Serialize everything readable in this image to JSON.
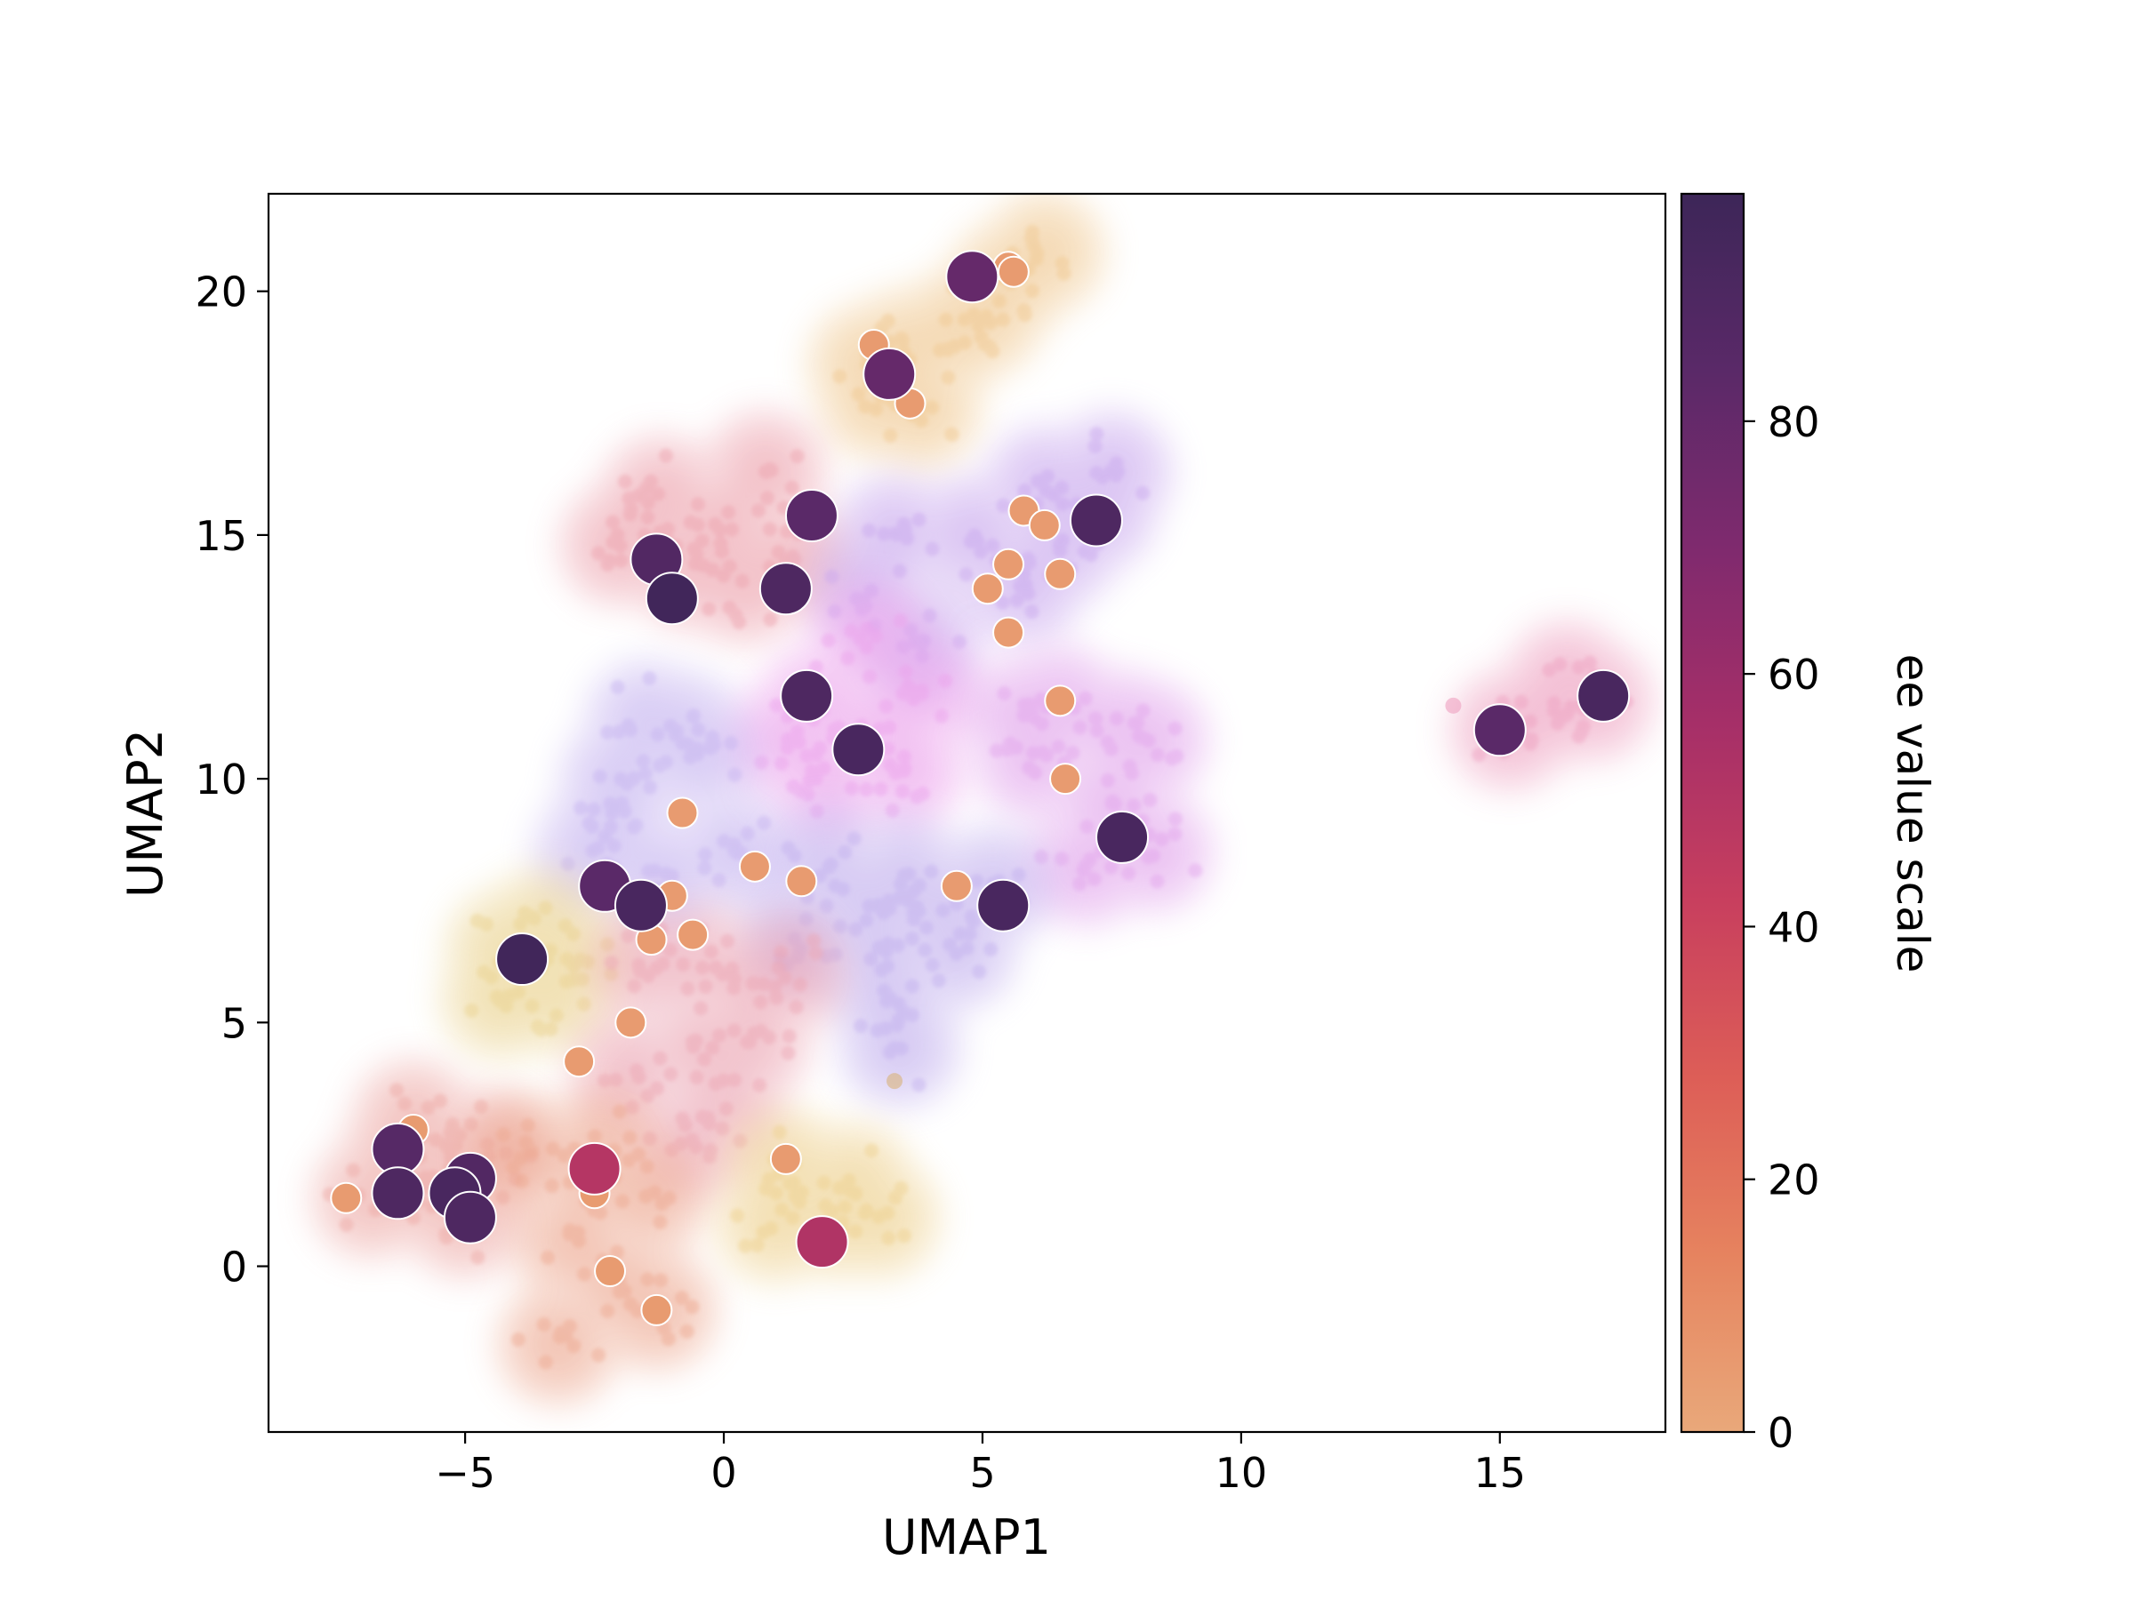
{
  "chart_data": {
    "type": "scatter",
    "title": "",
    "xlabel": "UMAP1",
    "ylabel": "UMAP2",
    "xlim": [
      -8.8,
      18.2
    ],
    "ylim": [
      -3.4,
      22.0
    ],
    "xticks": [
      -5,
      0,
      5,
      10,
      15
    ],
    "xtick_labels": [
      "−5",
      "0",
      "5",
      "10",
      "15"
    ],
    "yticks": [
      0,
      5,
      10,
      15,
      20
    ],
    "yticks_labels": [
      "0",
      "5",
      "10",
      "15",
      "20"
    ],
    "grid": false,
    "legend": "none",
    "colorbar": {
      "label": "ee value scale",
      "range": [
        0,
        98
      ],
      "ticks": [
        0,
        20,
        40,
        60,
        80
      ],
      "tick_labels": [
        "0",
        "20",
        "40",
        "60",
        "80"
      ],
      "colormap": "flare",
      "stops": [
        "#e9a87a",
        "#e6835f",
        "#dd5e57",
        "#c83f5e",
        "#a62f68",
        "#7f2a6e",
        "#5a2968",
        "#3d2658"
      ]
    },
    "density_clusters": [
      {
        "color": "#f0c890",
        "points": [
          [
            3.5,
            18.8
          ],
          [
            4.5,
            19.2
          ],
          [
            5.5,
            20.2
          ],
          [
            6.2,
            20.8
          ],
          [
            3.0,
            17.8
          ],
          [
            3.8,
            17.6
          ],
          [
            5.0,
            19.5
          ],
          [
            2.8,
            18.5
          ]
        ]
      },
      {
        "color": "#eda3ae",
        "points": [
          [
            -1.5,
            15.3
          ],
          [
            0.0,
            15.2
          ],
          [
            -2.0,
            14.8
          ],
          [
            0.8,
            16.3
          ],
          [
            -0.6,
            14.3
          ],
          [
            1.3,
            14.5
          ],
          [
            -1.2,
            15.8
          ],
          [
            0.4,
            14.0
          ]
        ]
      },
      {
        "color": "#c9a8ee",
        "points": [
          [
            6.2,
            16.0
          ],
          [
            7.5,
            16.3
          ],
          [
            6.5,
            14.8
          ],
          [
            5.8,
            14.0
          ],
          [
            4.8,
            15.0
          ],
          [
            3.3,
            15.0
          ],
          [
            2.8,
            14.0
          ],
          [
            3.8,
            12.8
          ],
          [
            7.2,
            15.5
          ]
        ]
      },
      {
        "color": "#eca2ec",
        "points": [
          [
            1.8,
            11.5
          ],
          [
            3.0,
            11.0
          ],
          [
            2.0,
            10.0
          ],
          [
            3.8,
            11.7
          ],
          [
            2.8,
            12.8
          ],
          [
            1.2,
            10.8
          ],
          [
            3.5,
            10.2
          ]
        ]
      },
      {
        "color": "#e2a4ec",
        "points": [
          [
            6.5,
            11.5
          ],
          [
            7.7,
            11.0
          ],
          [
            6.0,
            10.4
          ],
          [
            7.5,
            9.5
          ],
          [
            8.3,
            8.5
          ],
          [
            7.0,
            8.2
          ],
          [
            8.2,
            10.8
          ],
          [
            5.8,
            11.3
          ]
        ]
      },
      {
        "color": "#c6b4f0",
        "points": [
          [
            -1.5,
            11.2
          ],
          [
            -2.0,
            10.0
          ],
          [
            -0.5,
            10.5
          ],
          [
            -2.5,
            8.5
          ],
          [
            -1.2,
            8.0
          ],
          [
            0.2,
            8.5
          ],
          [
            -0.8,
            11.0
          ],
          [
            -2.2,
            9.0
          ]
        ]
      },
      {
        "color": "#c2b0ee",
        "points": [
          [
            3.5,
            8.0
          ],
          [
            4.2,
            7.3
          ],
          [
            2.8,
            7.4
          ],
          [
            3.2,
            5.5
          ],
          [
            3.4,
            4.5
          ],
          [
            5.2,
            7.8
          ],
          [
            2.0,
            8.2
          ],
          [
            1.5,
            6.8
          ],
          [
            4.5,
            6.5
          ],
          [
            3.0,
            6.5
          ]
        ]
      },
      {
        "color": "#ead28e",
        "points": [
          [
            -4.2,
            6.5
          ],
          [
            -3.3,
            5.6
          ],
          [
            -4.3,
            5.5
          ],
          [
            -3.0,
            6.3
          ],
          [
            -3.5,
            6.9
          ]
        ]
      },
      {
        "color": "#eca6b4",
        "points": [
          [
            -0.5,
            6.2
          ],
          [
            0.6,
            5.8
          ],
          [
            -0.4,
            4.5
          ],
          [
            0.0,
            3.4
          ],
          [
            -1.8,
            4.0
          ],
          [
            -0.6,
            2.6
          ],
          [
            1.2,
            6.0
          ],
          [
            -1.4,
            6.2
          ],
          [
            0.5,
            4.6
          ]
        ]
      },
      {
        "color": "#eda8a4",
        "points": [
          [
            -6.2,
            2.4
          ],
          [
            -5.3,
            2.0
          ],
          [
            -6.8,
            1.4
          ],
          [
            -5.0,
            1.0
          ],
          [
            -6.0,
            3.0
          ],
          [
            -4.6,
            2.4
          ],
          [
            -5.8,
            1.6
          ]
        ]
      },
      {
        "color": "#eda890",
        "points": [
          [
            -3.8,
            2.3
          ],
          [
            -2.5,
            1.8
          ],
          [
            -2.9,
            0.5
          ],
          [
            -2.0,
            -0.4
          ],
          [
            -3.2,
            -1.6
          ],
          [
            -1.3,
            -0.9
          ],
          [
            -2.4,
            2.4
          ],
          [
            -1.5,
            1.4
          ]
        ]
      },
      {
        "color": "#eed08e",
        "points": [
          [
            1.2,
            2.0
          ],
          [
            2.2,
            1.0
          ],
          [
            1.0,
            0.9
          ],
          [
            2.5,
            1.7
          ],
          [
            3.0,
            1.0
          ]
        ]
      },
      {
        "color": "#eea0c0",
        "points": [
          [
            16.0,
            11.5
          ],
          [
            15.2,
            11.0
          ],
          [
            16.8,
            11.6
          ],
          [
            16.3,
            12.0
          ]
        ]
      }
    ],
    "large_points": [
      {
        "x": 4.8,
        "y": 20.3,
        "ee": 80
      },
      {
        "x": 3.2,
        "y": 18.3,
        "ee": 80
      },
      {
        "x": 1.7,
        "y": 15.4,
        "ee": 84
      },
      {
        "x": -1.3,
        "y": 14.5,
        "ee": 88
      },
      {
        "x": -1.0,
        "y": 13.7,
        "ee": 96
      },
      {
        "x": 1.2,
        "y": 13.9,
        "ee": 90
      },
      {
        "x": 7.2,
        "y": 15.3,
        "ee": 90
      },
      {
        "x": 1.6,
        "y": 11.7,
        "ee": 90
      },
      {
        "x": 2.6,
        "y": 10.6,
        "ee": 92
      },
      {
        "x": 7.7,
        "y": 8.8,
        "ee": 92
      },
      {
        "x": -2.3,
        "y": 7.8,
        "ee": 84
      },
      {
        "x": -1.6,
        "y": 7.4,
        "ee": 92
      },
      {
        "x": 5.4,
        "y": 7.4,
        "ee": 92
      },
      {
        "x": -3.9,
        "y": 6.3,
        "ee": 96
      },
      {
        "x": -6.3,
        "y": 2.4,
        "ee": 86
      },
      {
        "x": -4.9,
        "y": 1.8,
        "ee": 88
      },
      {
        "x": -6.3,
        "y": 1.5,
        "ee": 90
      },
      {
        "x": -5.2,
        "y": 1.5,
        "ee": 92
      },
      {
        "x": -4.9,
        "y": 1.0,
        "ee": 90
      },
      {
        "x": -2.5,
        "y": 2.0,
        "ee": 50
      },
      {
        "x": 1.9,
        "y": 0.5,
        "ee": 52
      },
      {
        "x": 15.0,
        "y": 11.0,
        "ee": 84
      },
      {
        "x": 17.0,
        "y": 11.7,
        "ee": 92
      }
    ],
    "small_points": [
      {
        "x": 5.5,
        "y": 20.5,
        "ee": 5
      },
      {
        "x": 5.6,
        "y": 20.4,
        "ee": 5
      },
      {
        "x": 2.9,
        "y": 18.9,
        "ee": 5
      },
      {
        "x": 3.6,
        "y": 17.7,
        "ee": 5
      },
      {
        "x": 5.8,
        "y": 15.5,
        "ee": 5
      },
      {
        "x": 6.2,
        "y": 15.2,
        "ee": 5
      },
      {
        "x": 5.5,
        "y": 14.4,
        "ee": 5
      },
      {
        "x": 6.5,
        "y": 14.2,
        "ee": 5
      },
      {
        "x": 5.1,
        "y": 13.9,
        "ee": 5
      },
      {
        "x": 5.5,
        "y": 13.0,
        "ee": 5
      },
      {
        "x": 6.5,
        "y": 11.6,
        "ee": 5
      },
      {
        "x": 6.6,
        "y": 10.0,
        "ee": 5
      },
      {
        "x": -0.8,
        "y": 9.3,
        "ee": 5
      },
      {
        "x": 0.6,
        "y": 8.2,
        "ee": 5
      },
      {
        "x": 1.5,
        "y": 7.9,
        "ee": 5
      },
      {
        "x": 4.5,
        "y": 7.8,
        "ee": 5
      },
      {
        "x": -1.0,
        "y": 7.6,
        "ee": 5
      },
      {
        "x": -0.6,
        "y": 6.8,
        "ee": 5
      },
      {
        "x": -1.4,
        "y": 6.7,
        "ee": 5
      },
      {
        "x": -1.8,
        "y": 5.0,
        "ee": 5
      },
      {
        "x": -2.8,
        "y": 4.2,
        "ee": 5
      },
      {
        "x": -6.0,
        "y": 2.8,
        "ee": 5
      },
      {
        "x": 1.2,
        "y": 2.2,
        "ee": 5
      },
      {
        "x": -2.5,
        "y": 1.5,
        "ee": 5
      },
      {
        "x": -7.3,
        "y": 1.4,
        "ee": 5
      },
      {
        "x": -2.2,
        "y": -0.1,
        "ee": 5
      },
      {
        "x": -1.3,
        "y": -0.9,
        "ee": 5
      }
    ],
    "outliers": [
      {
        "x": 14.1,
        "y": 11.5,
        "color": "#eea0c0"
      },
      {
        "x": 3.3,
        "y": 3.8,
        "color": "#d8b27a"
      }
    ]
  }
}
